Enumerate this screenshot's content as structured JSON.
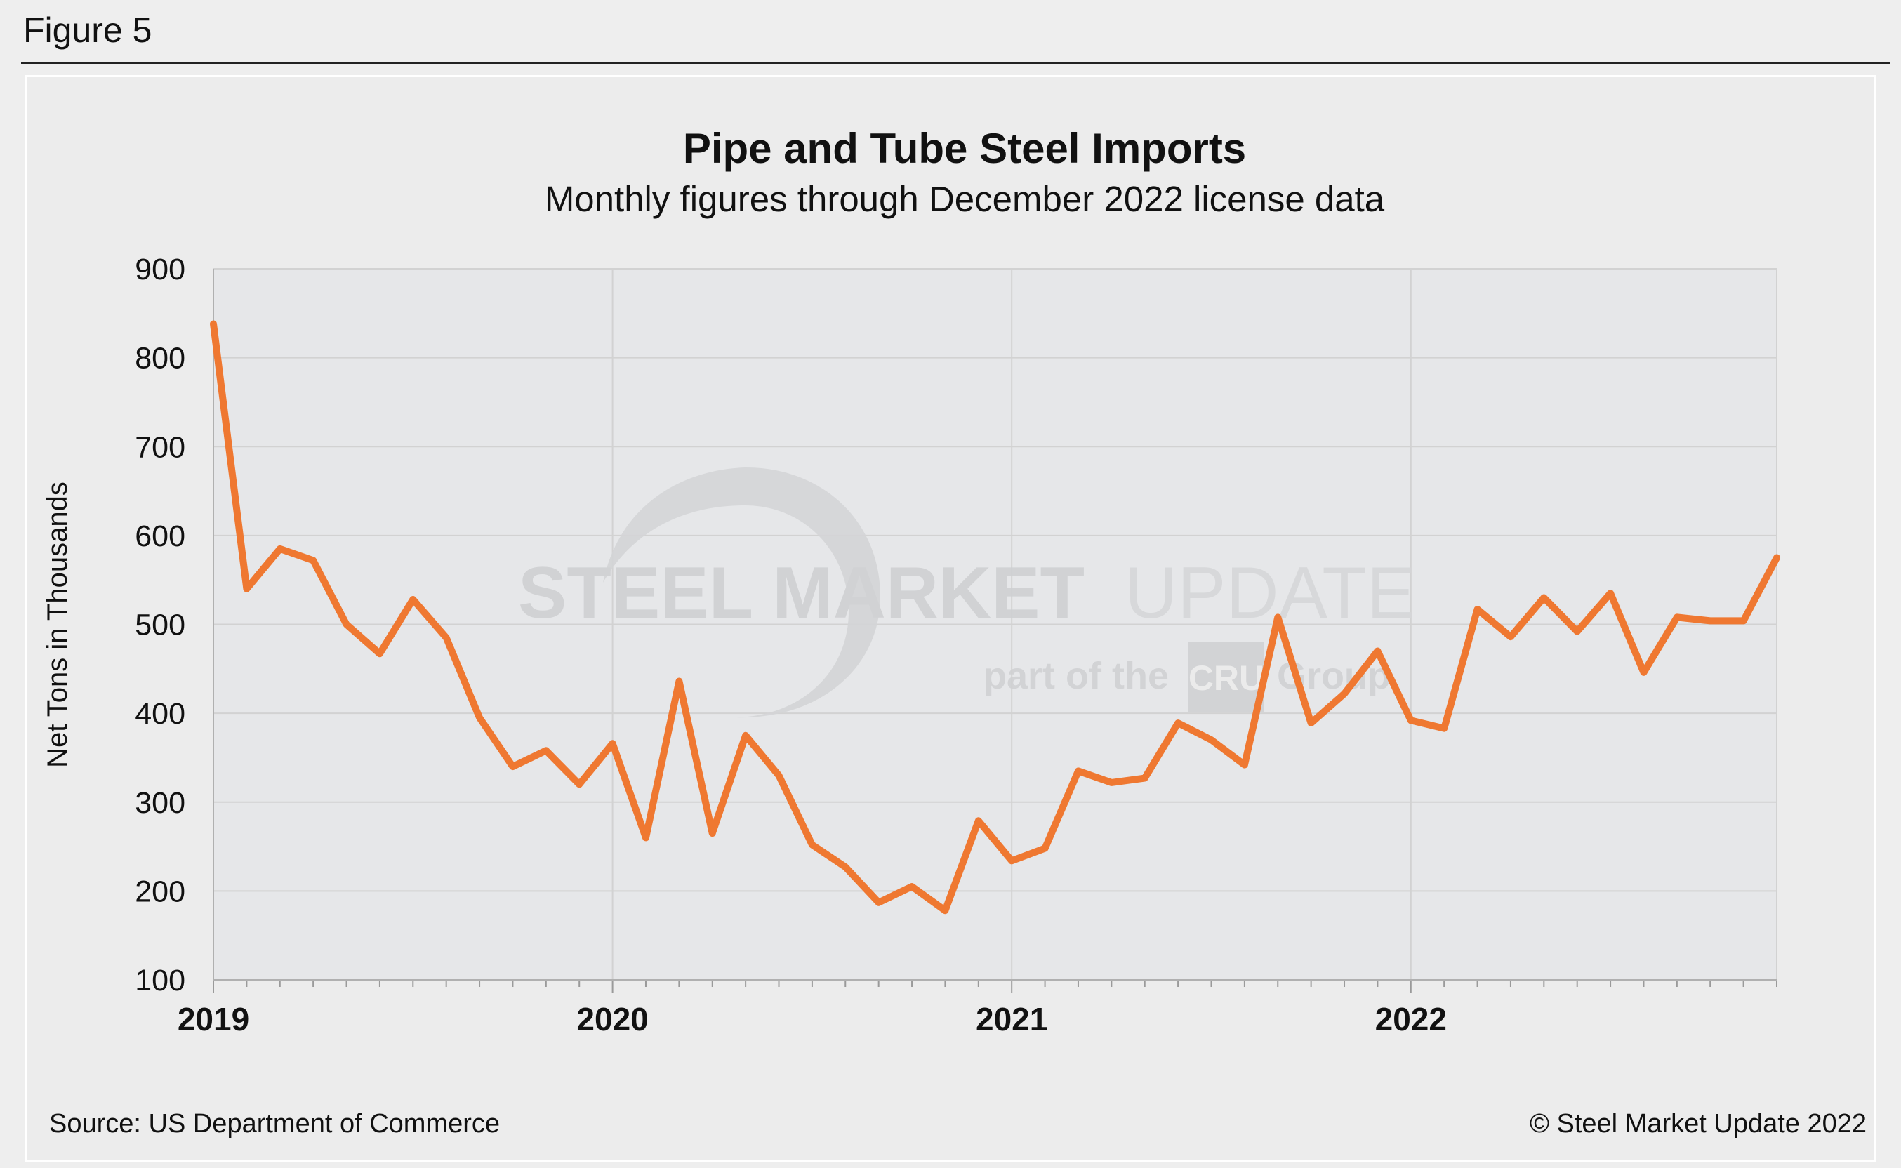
{
  "figure_label": "Figure 5",
  "source": "Source: US Department of Commerce",
  "copyright": "© Steel Market Update 2022",
  "watermark": {
    "main_bold": "STEEL MARKET",
    "main_light": "UPDATE",
    "sub_a": "part of the",
    "sub_logo": "CRU",
    "sub_b": "Group"
  },
  "colors": {
    "line": "#ef7831",
    "plot_bg": "#e6e7e9",
    "grid": "#d2d2d2"
  },
  "chart_data": {
    "type": "line",
    "title": "Pipe and Tube Steel Imports",
    "subtitle": "Monthly figures through December 2022 license data",
    "xlabel": "",
    "ylabel": "Net Tons in Thousands",
    "ylim": [
      100,
      900
    ],
    "yticks": [
      "100",
      "200",
      "300",
      "400",
      "500",
      "600",
      "700",
      "800",
      "900"
    ],
    "xtick_labels": [
      "2019",
      "2020",
      "2021",
      "2022"
    ],
    "x_months": 48,
    "grid": true,
    "series": [
      {
        "name": "Pipe and Tube Steel Imports",
        "values": [
          838,
          540,
          585,
          572,
          500,
          467,
          528,
          485,
          395,
          340,
          358,
          320,
          366,
          260,
          436,
          265,
          375,
          330,
          252,
          227,
          187,
          205,
          178,
          279,
          234,
          248,
          335,
          322,
          327,
          389,
          370,
          342,
          508,
          389,
          422,
          470,
          392,
          383,
          517,
          486,
          530,
          492,
          535,
          446,
          508,
          504,
          504,
          575
        ]
      }
    ]
  }
}
